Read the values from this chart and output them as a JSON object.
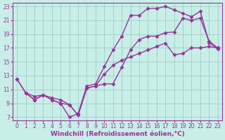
{
  "background_color": "#c8eee8",
  "grid_color": "#a0ccc4",
  "line_color": "#993399",
  "marker": "D",
  "markersize": 2.5,
  "linewidth": 1.0,
  "xlabel": "Windchill (Refroidissement éolien,°C)",
  "xlabel_fontsize": 6.5,
  "tick_fontsize": 5.5,
  "xlim": [
    -0.5,
    23.5
  ],
  "ylim": [
    6.5,
    23.5
  ],
  "xticks": [
    0,
    1,
    2,
    3,
    4,
    5,
    6,
    7,
    8,
    9,
    10,
    11,
    12,
    13,
    14,
    15,
    16,
    17,
    18,
    19,
    20,
    21,
    22,
    23
  ],
  "yticks": [
    7,
    9,
    11,
    13,
    15,
    17,
    19,
    21,
    23
  ],
  "curve1_x": [
    0,
    1,
    2,
    3,
    4,
    5,
    6,
    7,
    8,
    9,
    10,
    11,
    12,
    13,
    14,
    15,
    16,
    17,
    18,
    19,
    20,
    21,
    22,
    23
  ],
  "curve1_y": [
    12.5,
    10.5,
    10.0,
    10.2,
    9.8,
    9.5,
    8.8,
    7.3,
    11.2,
    11.5,
    11.8,
    11.8,
    14.2,
    16.7,
    18.2,
    18.7,
    18.7,
    19.2,
    19.3,
    21.3,
    21.0,
    21.3,
    18.0,
    17.0
  ],
  "curve2_x": [
    1,
    2,
    3,
    4,
    5,
    6,
    7,
    8,
    9,
    10,
    11,
    12,
    13,
    14,
    15,
    16,
    17,
    18,
    19,
    20,
    21,
    22,
    23
  ],
  "curve2_y": [
    10.5,
    9.5,
    10.2,
    9.5,
    9.0,
    7.0,
    7.5,
    11.5,
    11.8,
    14.3,
    16.7,
    18.7,
    21.7,
    21.7,
    22.7,
    22.7,
    23.0,
    22.5,
    22.0,
    21.5,
    22.3,
    17.8,
    16.8
  ],
  "curve3_x": [
    0,
    1,
    2,
    3,
    4,
    5,
    6,
    7,
    8,
    9,
    10,
    11,
    12,
    13,
    14,
    15,
    16,
    17,
    18,
    19,
    20,
    21,
    22,
    23
  ],
  "curve3_y": [
    12.5,
    10.5,
    9.5,
    10.2,
    9.5,
    9.0,
    8.8,
    7.3,
    11.2,
    11.5,
    13.2,
    14.5,
    15.2,
    15.7,
    16.2,
    16.7,
    17.2,
    17.7,
    16.0,
    16.2,
    17.0,
    17.0,
    17.2,
    17.0
  ]
}
